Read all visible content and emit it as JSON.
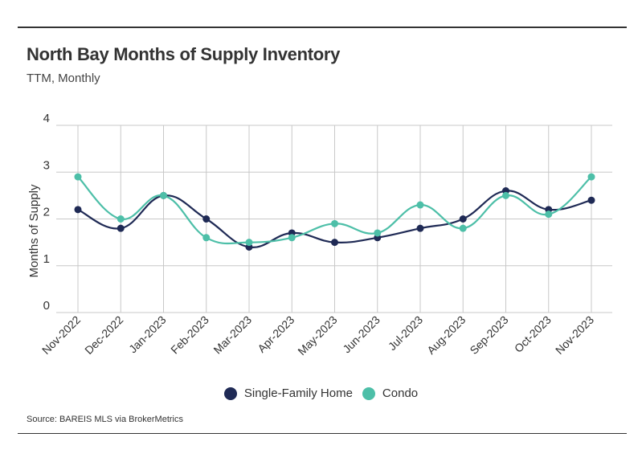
{
  "header": {
    "title": "North Bay Months of Supply Inventory",
    "subtitle": "TTM, Monthly"
  },
  "footer": {
    "source": "Source:  BAREIS MLS via BrokerMetrics"
  },
  "colors": {
    "single_family": "#1f2a55",
    "condo": "#4dbfa8",
    "grid": "#c8c8c8",
    "text": "#333333"
  },
  "chart_data": {
    "type": "line",
    "title": "North Bay Months of Supply Inventory",
    "subtitle": "TTM, Monthly",
    "xlabel": "",
    "ylabel": "Months of Supply",
    "ylim": [
      0,
      4
    ],
    "yticks": [
      0,
      1,
      2,
      3,
      4
    ],
    "grid": true,
    "legend_position": "bottom-center",
    "categories": [
      "Nov-2022",
      "Dec-2022",
      "Jan-2023",
      "Feb-2023",
      "Mar-2023",
      "Apr-2023",
      "May-2023",
      "Jun-2023",
      "Jul-2023",
      "Aug-2023",
      "Sep-2023",
      "Oct-2023",
      "Nov-2023"
    ],
    "series": [
      {
        "name": "Single-Family Home",
        "color": "#1f2a55",
        "values": [
          2.2,
          1.8,
          2.5,
          2.0,
          1.4,
          1.7,
          1.5,
          1.6,
          1.8,
          2.0,
          2.6,
          2.2,
          2.4
        ]
      },
      {
        "name": "Condo",
        "color": "#4dbfa8",
        "values": [
          2.9,
          2.0,
          2.5,
          1.6,
          1.5,
          1.6,
          1.9,
          1.7,
          2.3,
          1.8,
          2.5,
          2.1,
          2.9
        ]
      }
    ]
  }
}
